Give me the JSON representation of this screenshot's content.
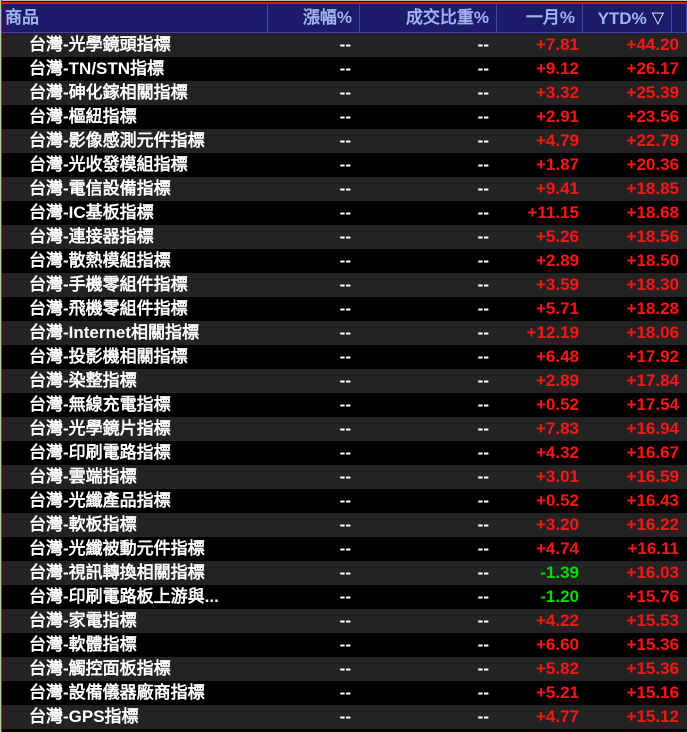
{
  "colors": {
    "up": "#ff1414",
    "down": "#00dd00",
    "header_bg": "#1b1b69",
    "header_fg": "#9fb4ef",
    "header_line": "#4444ae",
    "frame_red": "#b22c1c",
    "row_alt": "#232323",
    "row_base": "#000000",
    "text": "#ffffff"
  },
  "table": {
    "sort_icon": "▽",
    "sorted_column": "YTD%",
    "columns": [
      {
        "key": "name",
        "label": "商品"
      },
      {
        "key": "change",
        "label": "漲幅%"
      },
      {
        "key": "vol",
        "label": "成交比重%"
      },
      {
        "key": "month",
        "label": "一月%"
      },
      {
        "key": "ytd",
        "label": "YTD%"
      }
    ],
    "rows": [
      {
        "name": "台灣-光學鏡頭指標",
        "change": "--",
        "vol": "--",
        "month": "+7.81",
        "ytd": "+44.20"
      },
      {
        "name": "台灣-TN/STN指標",
        "change": "--",
        "vol": "--",
        "month": "+9.12",
        "ytd": "+26.17"
      },
      {
        "name": "台灣-砷化鎵相關指標",
        "change": "--",
        "vol": "--",
        "month": "+3.32",
        "ytd": "+25.39"
      },
      {
        "name": "台灣-樞紐指標",
        "change": "--",
        "vol": "--",
        "month": "+2.91",
        "ytd": "+23.56"
      },
      {
        "name": "台灣-影像感測元件指標",
        "change": "--",
        "vol": "--",
        "month": "+4.79",
        "ytd": "+22.79"
      },
      {
        "name": "台灣-光收發模組指標",
        "change": "--",
        "vol": "--",
        "month": "+1.87",
        "ytd": "+20.36"
      },
      {
        "name": "台灣-電信設備指標",
        "change": "--",
        "vol": "--",
        "month": "+9.41",
        "ytd": "+18.85"
      },
      {
        "name": "台灣-IC基板指標",
        "change": "--",
        "vol": "--",
        "month": "+11.15",
        "ytd": "+18.68"
      },
      {
        "name": "台灣-連接器指標",
        "change": "--",
        "vol": "--",
        "month": "+5.26",
        "ytd": "+18.56"
      },
      {
        "name": "台灣-散熱模組指標",
        "change": "--",
        "vol": "--",
        "month": "+2.89",
        "ytd": "+18.50"
      },
      {
        "name": "台灣-手機零組件指標",
        "change": "--",
        "vol": "--",
        "month": "+3.59",
        "ytd": "+18.30"
      },
      {
        "name": "台灣-飛機零組件指標",
        "change": "--",
        "vol": "--",
        "month": "+5.71",
        "ytd": "+18.28"
      },
      {
        "name": "台灣-Internet相關指標",
        "change": "--",
        "vol": "--",
        "month": "+12.19",
        "ytd": "+18.06"
      },
      {
        "name": "台灣-投影機相關指標",
        "change": "--",
        "vol": "--",
        "month": "+6.48",
        "ytd": "+17.92"
      },
      {
        "name": "台灣-染整指標",
        "change": "--",
        "vol": "--",
        "month": "+2.89",
        "ytd": "+17.84"
      },
      {
        "name": "台灣-無線充電指標",
        "change": "--",
        "vol": "--",
        "month": "+0.52",
        "ytd": "+17.54"
      },
      {
        "name": "台灣-光學鏡片指標",
        "change": "--",
        "vol": "--",
        "month": "+7.83",
        "ytd": "+16.94"
      },
      {
        "name": "台灣-印刷電路指標",
        "change": "--",
        "vol": "--",
        "month": "+4.32",
        "ytd": "+16.67"
      },
      {
        "name": "台灣-雲端指標",
        "change": "--",
        "vol": "--",
        "month": "+3.01",
        "ytd": "+16.59"
      },
      {
        "name": "台灣-光纖產品指標",
        "change": "--",
        "vol": "--",
        "month": "+0.52",
        "ytd": "+16.43"
      },
      {
        "name": "台灣-軟板指標",
        "change": "--",
        "vol": "--",
        "month": "+3.20",
        "ytd": "+16.22"
      },
      {
        "name": "台灣-光纖被動元件指標",
        "change": "--",
        "vol": "--",
        "month": "+4.74",
        "ytd": "+16.11"
      },
      {
        "name": "台灣-視訊轉換相關指標",
        "change": "--",
        "vol": "--",
        "month": "-1.39",
        "ytd": "+16.03"
      },
      {
        "name": "台灣-印刷電路板上游與...",
        "change": "--",
        "vol": "--",
        "month": "-1.20",
        "ytd": "+15.76"
      },
      {
        "name": "台灣-家電指標",
        "change": "--",
        "vol": "--",
        "month": "+4.22",
        "ytd": "+15.53"
      },
      {
        "name": "台灣-軟體指標",
        "change": "--",
        "vol": "--",
        "month": "+6.60",
        "ytd": "+15.36"
      },
      {
        "name": "台灣-觸控面板指標",
        "change": "--",
        "vol": "--",
        "month": "+5.82",
        "ytd": "+15.36"
      },
      {
        "name": "台灣-設備儀器廠商指標",
        "change": "--",
        "vol": "--",
        "month": "+5.21",
        "ytd": "+15.16"
      },
      {
        "name": "台灣-GPS指標",
        "change": "--",
        "vol": "--",
        "month": "+4.77",
        "ytd": "+15.12"
      }
    ]
  }
}
